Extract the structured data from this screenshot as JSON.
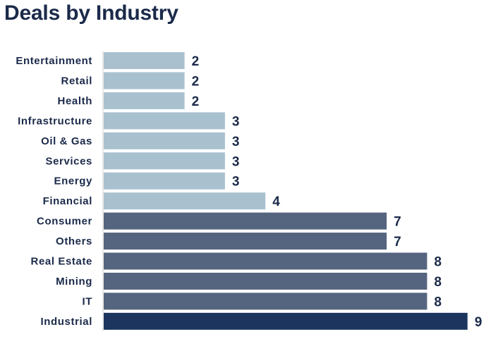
{
  "chart_data": {
    "type": "bar",
    "orientation": "horizontal",
    "title": "Deals by Industry",
    "xlabel": "",
    "ylabel": "",
    "xlim": [
      0,
      9
    ],
    "grid": false,
    "categories": [
      "Entertainment",
      "Retail",
      "Health",
      "Infrastructure",
      "Oil & Gas",
      "Services",
      "Energy",
      "Financial",
      "Consumer",
      "Others",
      "Real Estate",
      "Mining",
      "IT",
      "Industrial"
    ],
    "values": [
      2,
      2,
      2,
      3,
      3,
      3,
      3,
      4,
      7,
      7,
      8,
      8,
      8,
      9
    ],
    "colors": {
      "light": "#a9c1cf",
      "medium": "#55657f",
      "dark": "#1b355f",
      "text": "#1b2a4a"
    }
  }
}
